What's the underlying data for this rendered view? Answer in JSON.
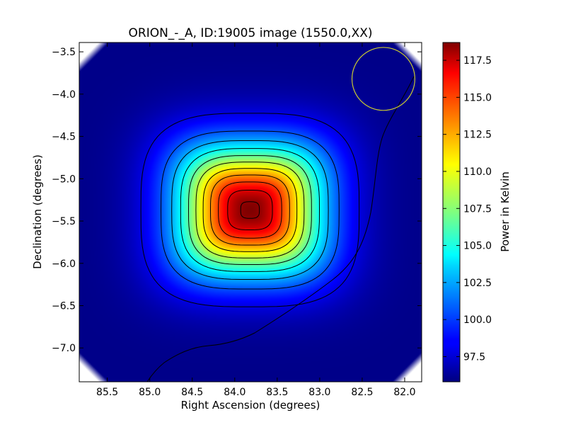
{
  "chart_data": {
    "type": "heatmap",
    "title": "ORION_-_A, ID:19005 image (1550.0,XX)",
    "xlabel": "Right Ascension (degrees)",
    "ylabel": "Declination (degrees)",
    "xlim": [
      85.83,
      81.8
    ],
    "ylim": [
      -7.4,
      -3.39
    ],
    "x_reversed": true,
    "x_ticks": [
      85.5,
      85.0,
      84.5,
      84.0,
      83.5,
      83.0,
      82.5,
      82.0
    ],
    "x_tick_labels": [
      "85.5",
      "85.0",
      "84.5",
      "84.0",
      "83.5",
      "83.0",
      "82.5",
      "82.0"
    ],
    "y_ticks": [
      -3.5,
      -4.0,
      -4.5,
      -5.0,
      -5.5,
      -6.0,
      -6.5,
      -7.0
    ],
    "y_tick_labels": [
      "−3.5",
      "−4.0",
      "−4.5",
      "−5.0",
      "−5.5",
      "−6.0",
      "−6.5",
      "−7.0"
    ],
    "colorbar": {
      "label": "Power in Kelvin",
      "colormap": "jet",
      "vmin": 95.8,
      "vmax": 118.7,
      "ticks": [
        97.5,
        100.0,
        102.5,
        105.0,
        107.5,
        110.0,
        112.5,
        115.0,
        117.5
      ],
      "tick_labels": [
        "97.5",
        "100.0",
        "102.5",
        "105.0",
        "107.5",
        "110.0",
        "112.5",
        "115.0",
        "117.5"
      ]
    },
    "source": {
      "center_ra": 83.82,
      "center_dec": -5.37,
      "peak_value": 118.7,
      "background_value": 96.0
    },
    "contour_levels": [
      98.0,
      100.5,
      102.5,
      104.5,
      106.5,
      108.5,
      110.5,
      112.5,
      114.5,
      116.5,
      118.3
    ],
    "contour_line_color": "#000000",
    "beam_circle": {
      "center_ra": 82.25,
      "center_dec": -3.82,
      "radius_deg": 0.37,
      "color": "#c8c832"
    },
    "grid": false
  }
}
